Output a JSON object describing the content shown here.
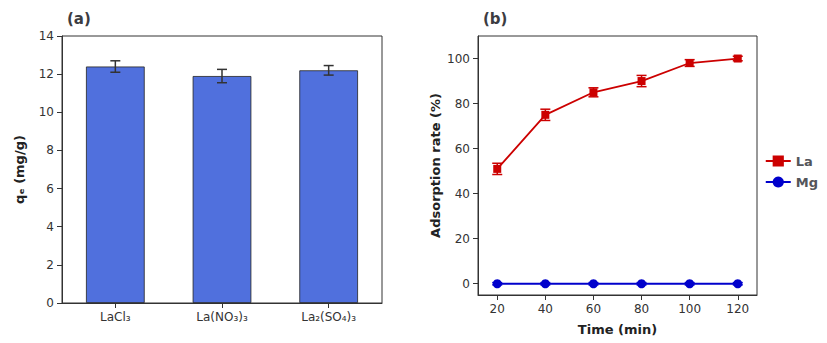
{
  "chart_data": [
    {
      "type": "bar",
      "title": "(a)",
      "categories": [
        "LaCl₃",
        "La(NO₃)₃",
        "La₂(SO₄)₃"
      ],
      "values": [
        12.4,
        11.9,
        12.2
      ],
      "errors": [
        0.3,
        0.35,
        0.25
      ],
      "ylabel": "qₑ (mg/g)",
      "ylim": [
        0,
        14
      ],
      "yticks": [
        0,
        2,
        4,
        6,
        8,
        10,
        12,
        14
      ],
      "grid": false
    },
    {
      "type": "line",
      "title": "(b)",
      "x": [
        20,
        40,
        60,
        80,
        100,
        120
      ],
      "series": [
        {
          "name": "La",
          "color": "#cc0000",
          "marker": "square",
          "values": [
            51,
            75,
            85,
            90,
            98,
            100
          ],
          "errors": [
            2.5,
            2.5,
            2.0,
            2.5,
            1.5,
            1.0
          ]
        },
        {
          "name": "Mg",
          "color": "#0000cc",
          "marker": "circle",
          "values": [
            0,
            0,
            0,
            0,
            0,
            0
          ],
          "errors": [
            0.5,
            0.5,
            0.5,
            0.5,
            0.5,
            0.5
          ]
        }
      ],
      "xlabel": "Time (min)",
      "ylabel": "Adsorption rate (%)",
      "xlim": [
        12,
        128
      ],
      "xticks": [
        20,
        40,
        60,
        80,
        100,
        120
      ],
      "ylim": [
        -5,
        110
      ],
      "yticks": [
        0,
        20,
        40,
        60,
        80,
        100
      ],
      "grid": false,
      "legend": "right"
    }
  ]
}
